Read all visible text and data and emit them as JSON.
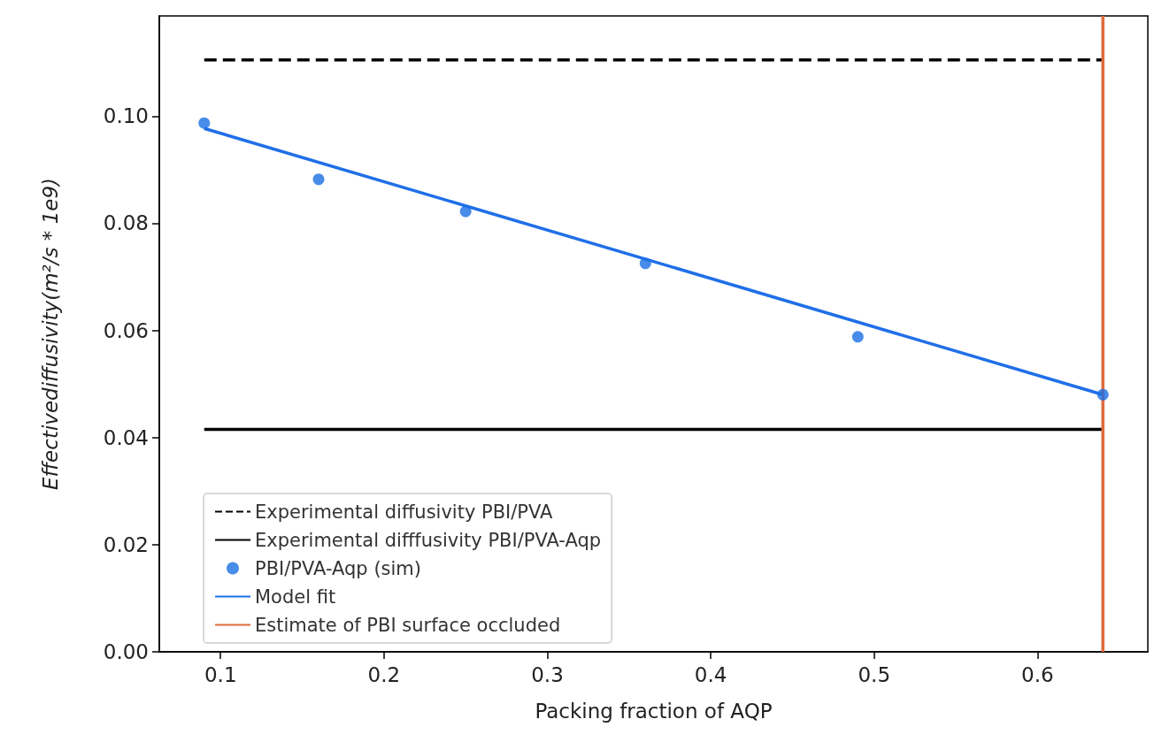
{
  "chart_data": {
    "type": "line",
    "xlabel": "Packing fraction of AQP",
    "ylabel": "Effectivediffusivity(m²/s * 1e9)",
    "xlim": [
      0.0625,
      0.6675
    ],
    "xticks": [
      0.1,
      0.2,
      0.3,
      0.4,
      0.5,
      0.6
    ],
    "ylim": [
      0,
      0.1187
    ],
    "yticks": [
      {
        "value": 0,
        "label": "0.00"
      },
      {
        "value": 0.02,
        "label": "0.02"
      },
      {
        "value": 0.04,
        "label": "0.04"
      },
      {
        "value": 0.06,
        "label": "0.06"
      },
      {
        "value": 0.08,
        "label": "0.08"
      },
      {
        "value": 0.1,
        "label": "0.10"
      }
    ],
    "grid": false,
    "legend": "bottom left",
    "series": [
      {
        "name": "Experimental diffusivity PBI/PVA",
        "line_style": "dashed",
        "marker": "none",
        "color": "#000000",
        "x": [
          0.09,
          0.64
        ],
        "values": [
          0.1105,
          0.1105
        ]
      },
      {
        "name": "Experimental difffusivity PBI/PVA-Aqp",
        "line_style": "solid",
        "marker": "none",
        "color": "#000000",
        "x": [
          0.09,
          0.64
        ],
        "values": [
          0.0415,
          0.0415
        ]
      },
      {
        "name": "PBI/PVA-Aqp (sim)",
        "type": "scatter",
        "marker": "circle",
        "color": "#1a6fe3",
        "x": [
          0.09,
          0.16,
          0.25,
          0.36,
          0.49,
          0.64
        ],
        "values": [
          0.0987,
          0.0882,
          0.0822,
          0.0725,
          0.0588,
          0.048
        ]
      },
      {
        "name": "Model fit",
        "line_style": "solid",
        "marker": "none",
        "color": "#1f6fe8",
        "x": [
          0.09,
          0.64
        ],
        "values": [
          0.0977,
          0.048
        ]
      },
      {
        "name": "Estimate of PBI surface occluded",
        "line_style": "solid",
        "marker": "none",
        "color": "#e06a3c",
        "x": [
          0.64,
          0.64
        ],
        "values": [
          0,
          0.1187
        ]
      }
    ]
  }
}
